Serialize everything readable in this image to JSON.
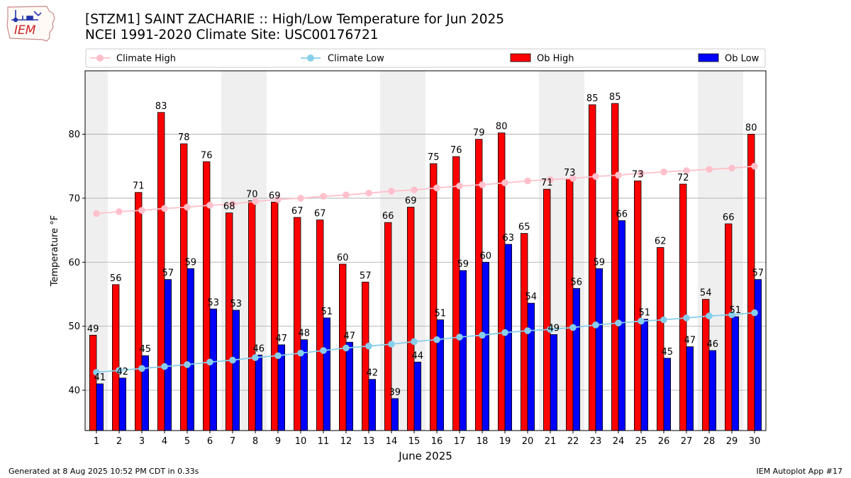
{
  "header": {
    "logo_text": "IEM",
    "title_line1": "[STZM1] SAINT ZACHARIE :: High/Low Temperature for Jun 2025",
    "title_line2": "NCEI 1991-2020 Climate Site: USC00176721"
  },
  "footer": {
    "left": "Generated at 8 Aug 2025 10:52 PM CDT in 0.33s",
    "right": "IEM Autoplot App #17"
  },
  "colors": {
    "ob_high": "#ff0000",
    "ob_low": "#0000ff",
    "climate_high": "#ffc0cb",
    "climate_low": "#87ceeb",
    "weekend_band": "#efefef",
    "grid": "#b0b0b0"
  },
  "chart_data": {
    "type": "bar",
    "title": "[STZM1] SAINT ZACHARIE :: High/Low Temperature for Jun 2025",
    "subtitle": "NCEI 1991-2020 Climate Site: USC00176721",
    "xlabel": "June 2025",
    "ylabel": "Temperature °F",
    "ylim": [
      33.7,
      89.9
    ],
    "yticks": [
      40,
      50,
      60,
      70,
      80
    ],
    "grid": "horizontal",
    "legend_position": "top",
    "categories": [
      "1",
      "2",
      "3",
      "4",
      "5",
      "6",
      "7",
      "8",
      "9",
      "10",
      "11",
      "12",
      "13",
      "14",
      "15",
      "16",
      "17",
      "18",
      "19",
      "20",
      "21",
      "22",
      "23",
      "24",
      "25",
      "26",
      "27",
      "28",
      "29",
      "30"
    ],
    "shaded_days": [
      1,
      7,
      8,
      14,
      15,
      21,
      22,
      28,
      29
    ],
    "series": [
      {
        "name": "Ob High",
        "kind": "bar",
        "values": [
          48.6,
          56.5,
          70.9,
          83.4,
          78.5,
          75.7,
          67.7,
          69.6,
          69.4,
          67.0,
          66.6,
          59.7,
          56.9,
          66.2,
          68.6,
          75.4,
          76.5,
          79.2,
          80.2,
          64.5,
          71.4,
          73.0,
          84.6,
          84.8,
          72.7,
          62.3,
          72.2,
          54.2,
          66.0,
          80.0
        ],
        "labels": [
          "49",
          "56",
          "71",
          "83",
          "78",
          "76",
          "68",
          "70",
          "69",
          "67",
          "67",
          "60",
          "57",
          "66",
          "69",
          "75",
          "76",
          "79",
          "80",
          "65",
          "71",
          "73",
          "85",
          "85",
          "73",
          "62",
          "72",
          "54",
          "66",
          "80"
        ]
      },
      {
        "name": "Ob Low",
        "kind": "bar",
        "values": [
          41.0,
          41.9,
          45.4,
          57.3,
          59.0,
          52.7,
          52.5,
          45.5,
          47.1,
          47.9,
          51.3,
          47.5,
          41.7,
          38.7,
          44.4,
          51.0,
          58.7,
          60.0,
          62.8,
          53.6,
          48.7,
          55.9,
          59.0,
          66.5,
          51.1,
          45.0,
          46.8,
          46.2,
          51.5,
          57.3
        ],
        "labels": [
          "41",
          "42",
          "45",
          "57",
          "59",
          "53",
          "53",
          "46",
          "47",
          "48",
          "51",
          "47",
          "42",
          "39",
          "44",
          "51",
          "59",
          "60",
          "63",
          "54",
          "49",
          "56",
          "59",
          "66",
          "51",
          "45",
          "47",
          "46",
          "51",
          "57"
        ]
      },
      {
        "name": "Climate High",
        "kind": "line",
        "values": [
          67.6,
          67.9,
          68.1,
          68.4,
          68.6,
          68.9,
          69.1,
          69.5,
          69.8,
          70.0,
          70.3,
          70.5,
          70.8,
          71.1,
          71.3,
          71.6,
          71.9,
          72.1,
          72.4,
          72.7,
          72.9,
          73.1,
          73.4,
          73.6,
          73.9,
          74.1,
          74.3,
          74.5,
          74.7,
          75.0
        ]
      },
      {
        "name": "Climate Low",
        "kind": "line",
        "values": [
          42.8,
          43.1,
          43.4,
          43.7,
          44.0,
          44.4,
          44.7,
          45.1,
          45.4,
          45.8,
          46.2,
          46.6,
          46.9,
          47.2,
          47.6,
          47.9,
          48.3,
          48.6,
          49.0,
          49.3,
          49.5,
          49.8,
          50.2,
          50.5,
          50.8,
          51.0,
          51.3,
          51.6,
          51.8,
          52.1
        ]
      }
    ]
  }
}
